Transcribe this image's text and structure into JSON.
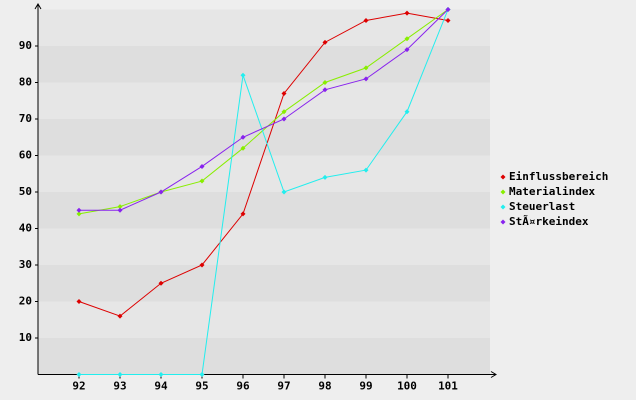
{
  "chart_data": {
    "type": "line",
    "categories": [
      "92",
      "93",
      "94",
      "95",
      "96",
      "97",
      "98",
      "99",
      "100",
      "101"
    ],
    "series": [
      {
        "name": "Einflussbereich",
        "color": "#dd0000",
        "values": [
          20,
          16,
          25,
          30,
          44,
          77,
          91,
          97,
          99,
          97
        ]
      },
      {
        "name": "Materialindex",
        "color": "#88ee00",
        "values": [
          44,
          46,
          50,
          53,
          62,
          72,
          80,
          84,
          92,
          100
        ]
      },
      {
        "name": "Steuerlast",
        "color": "#22eeee",
        "values": [
          0,
          0,
          0,
          0,
          82,
          50,
          54,
          56,
          72,
          100
        ]
      },
      {
        "name": "StÃ¤rkeindex",
        "color": "#8822ee",
        "values": [
          45,
          45,
          50,
          57,
          65,
          70,
          78,
          81,
          89,
          100
        ]
      }
    ],
    "ylim": [
      0,
      100
    ],
    "yticks": [
      10,
      20,
      30,
      40,
      50,
      60,
      70,
      80,
      90
    ],
    "grid": true,
    "legend": "right"
  }
}
